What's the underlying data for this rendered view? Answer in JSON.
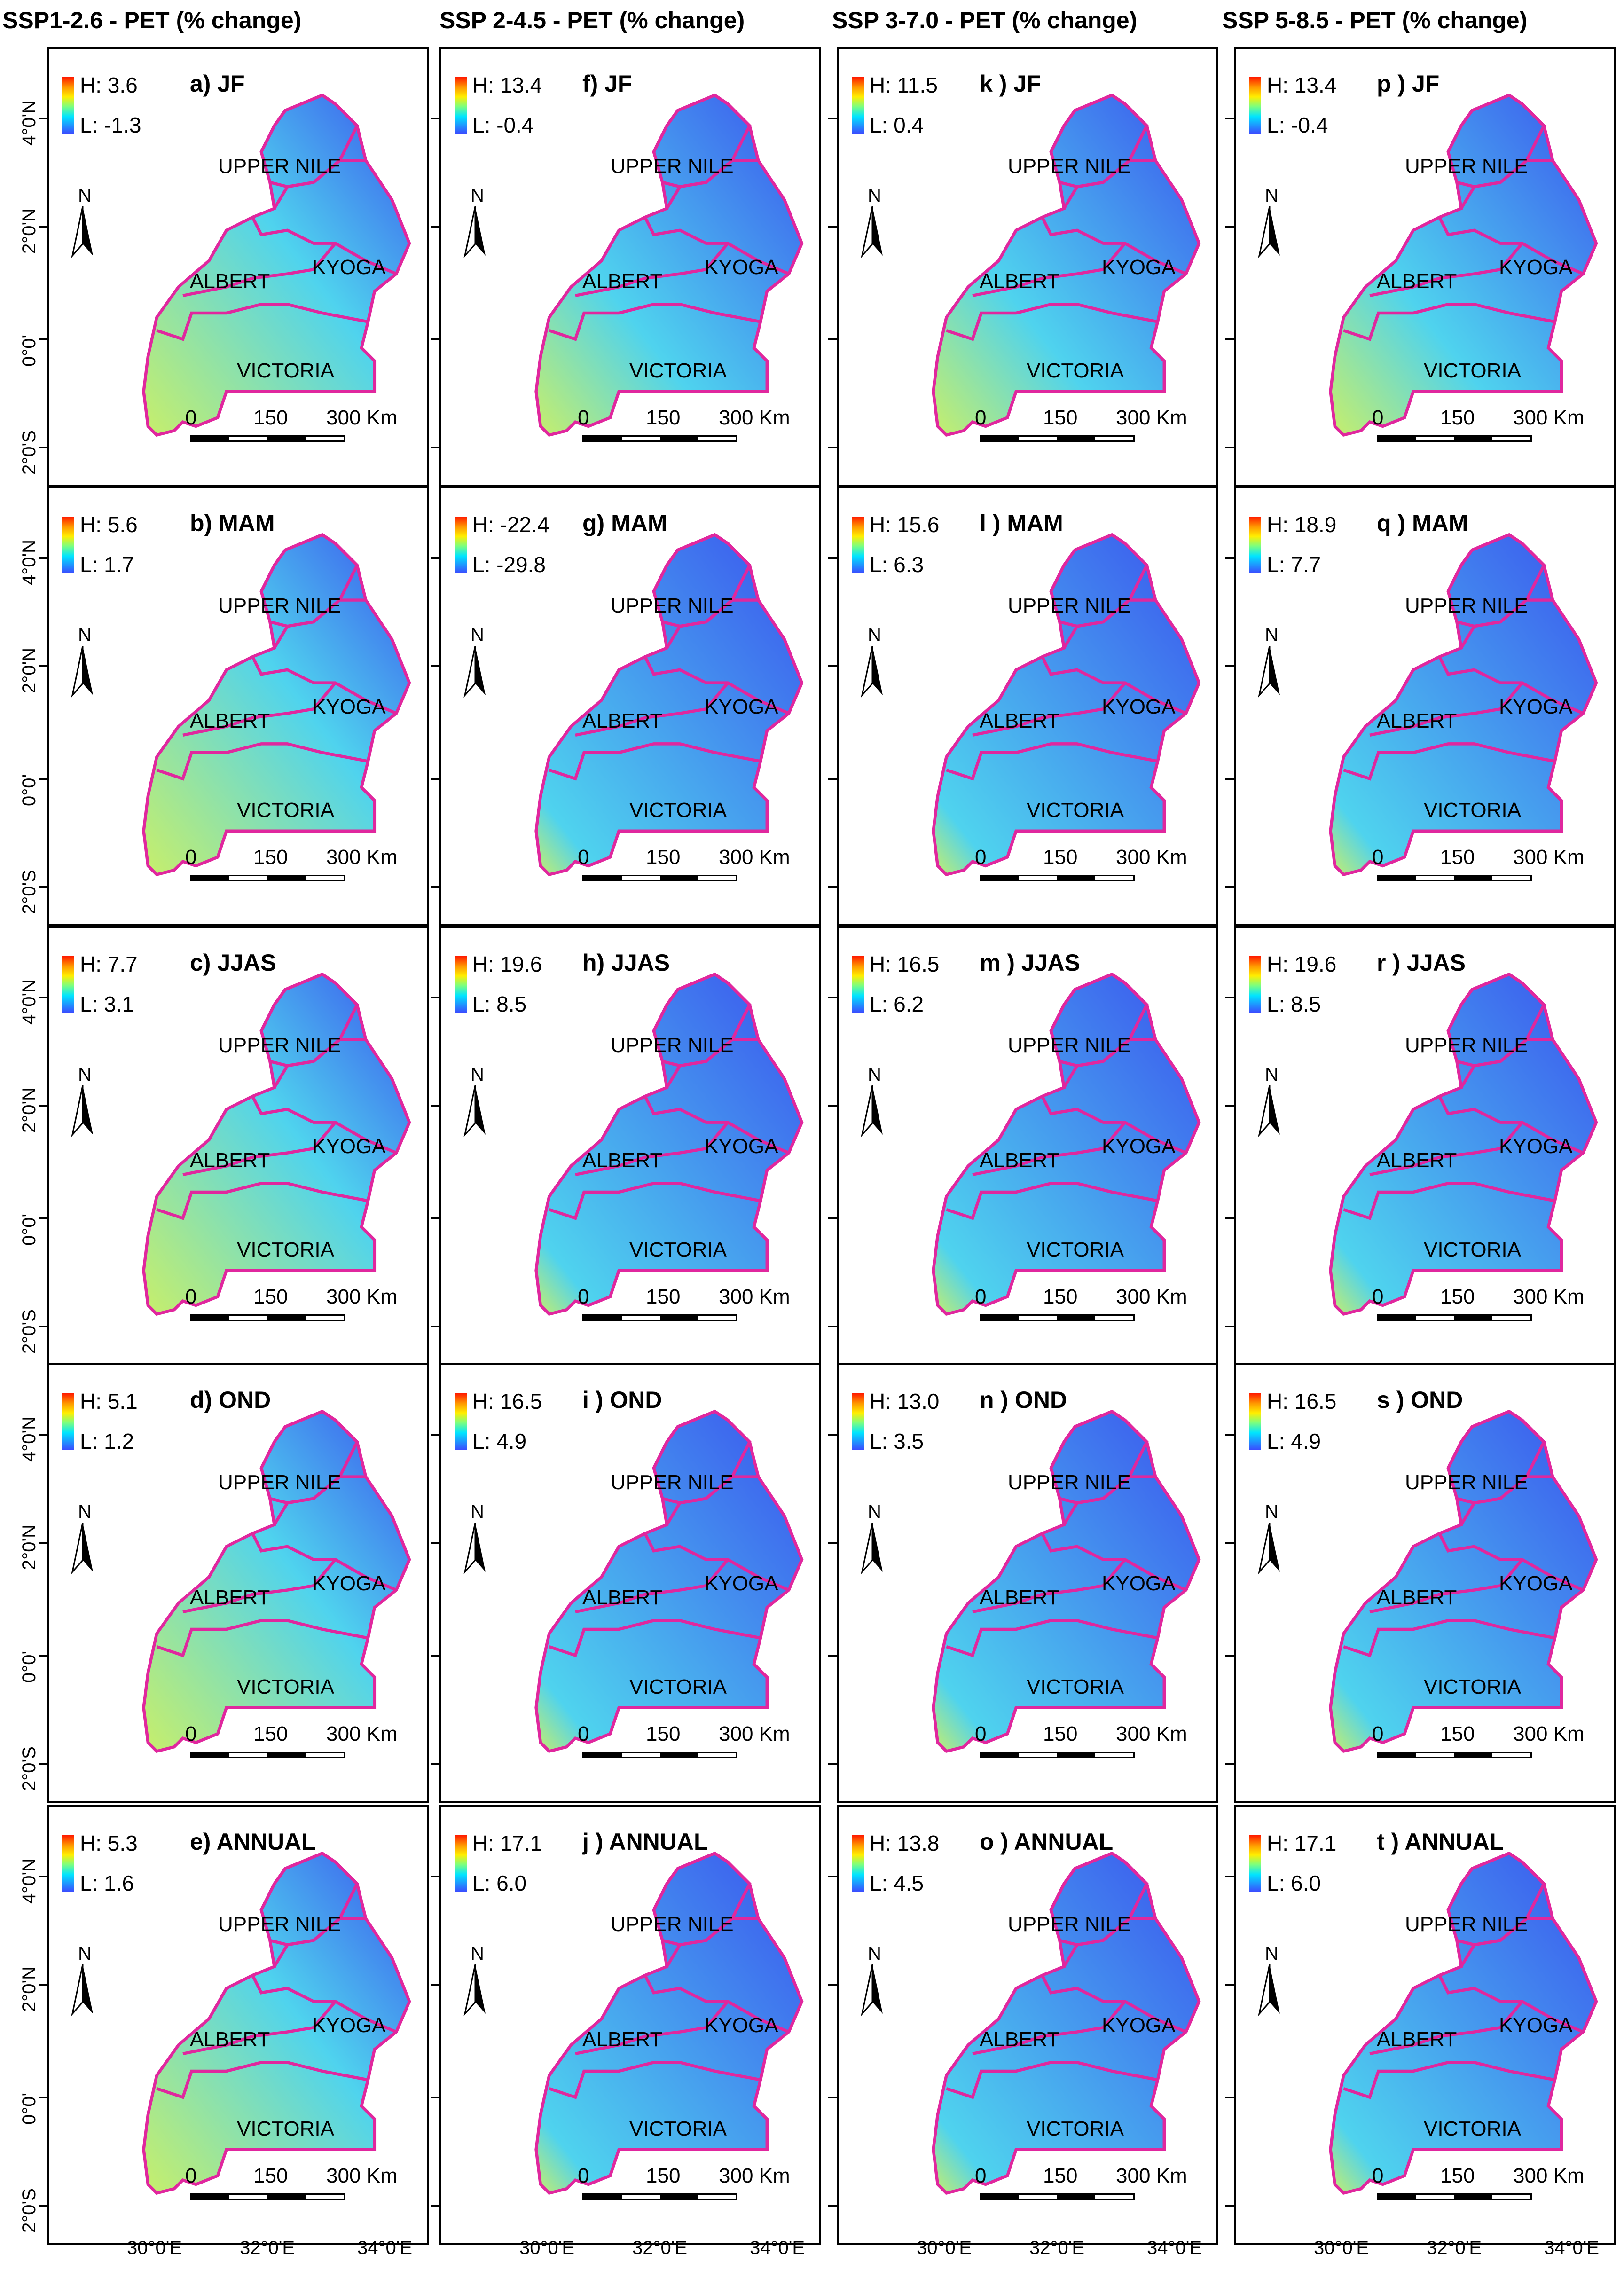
{
  "columns": [
    "SSP1-2.6 - PET (% change)",
    "SSP 2-4.5 - PET (% change)",
    "SSP 3-7.0 - PET (% change)",
    "SSP 5-8.5 - PET (% change)"
  ],
  "latitude_labels": [
    "4°0'N",
    "2°0'N",
    "0°0'",
    "2°0'S"
  ],
  "longitude_labels": [
    "30°0'E",
    "32°0'E",
    "34°0'E"
  ],
  "regions": [
    "UPPER NILE",
    "KYOGA",
    "ALBERT",
    "VICTORIA"
  ],
  "north_label": "N",
  "scale": {
    "t0": "0",
    "t1": "150",
    "t2": "300 Km"
  },
  "panels": [
    {
      "title": "a) JF",
      "high": "H: 3.6",
      "low": "L: -1.3"
    },
    {
      "title": "f) JF",
      "high": "H: 13.4",
      "low": "L: -0.4"
    },
    {
      "title": "k ) JF",
      "high": "H: 11.5",
      "low": "L: 0.4"
    },
    {
      "title": "p ) JF",
      "high": "H: 13.4",
      "low": "L: -0.4"
    },
    {
      "title": "b) MAM",
      "high": "H: 5.6",
      "low": "L: 1.7"
    },
    {
      "title": "g) MAM",
      "high": "H: -22.4",
      "low": "L: -29.8"
    },
    {
      "title": "l ) MAM",
      "high": "H: 15.6",
      "low": "L: 6.3"
    },
    {
      "title": "q ) MAM",
      "high": "H: 18.9",
      "low": "L: 7.7"
    },
    {
      "title": "c) JJAS",
      "high": "H: 7.7",
      "low": "L: 3.1"
    },
    {
      "title": "h) JJAS",
      "high": "H: 19.6",
      "low": "L: 8.5"
    },
    {
      "title": "m ) JJAS",
      "high": "H: 16.5",
      "low": "L: 6.2"
    },
    {
      "title": "r ) JJAS",
      "high": "H: 19.6",
      "low": "L: 8.5"
    },
    {
      "title": "d) OND",
      "high": "H: 5.1",
      "low": "L: 1.2"
    },
    {
      "title": "i ) OND",
      "high": "H: 16.5",
      "low": "L: 4.9"
    },
    {
      "title": "n ) OND",
      "high": "H: 13.0",
      "low": "L: 3.5"
    },
    {
      "title": "s ) OND",
      "high": "H: 16.5",
      "low": "L: 4.9"
    },
    {
      "title": "e) ANNUAL",
      "high": "H: 5.3",
      "low": "L: 1.6"
    },
    {
      "title": "j ) ANNUAL",
      "high": "H: 17.1",
      "low": "L: 6.0"
    },
    {
      "title": "o ) ANNUAL",
      "high": "H: 13.8",
      "low": "L: 4.5"
    },
    {
      "title": "t ) ANNUAL",
      "high": "H: 17.1",
      "low": "L: 6.0"
    }
  ],
  "colors": {
    "boundary": "#e0279e",
    "map_fill_warm": "#c8ef6a",
    "map_fill_mid": "#4fd3ee",
    "map_fill_cool": "#3a52ee"
  }
}
